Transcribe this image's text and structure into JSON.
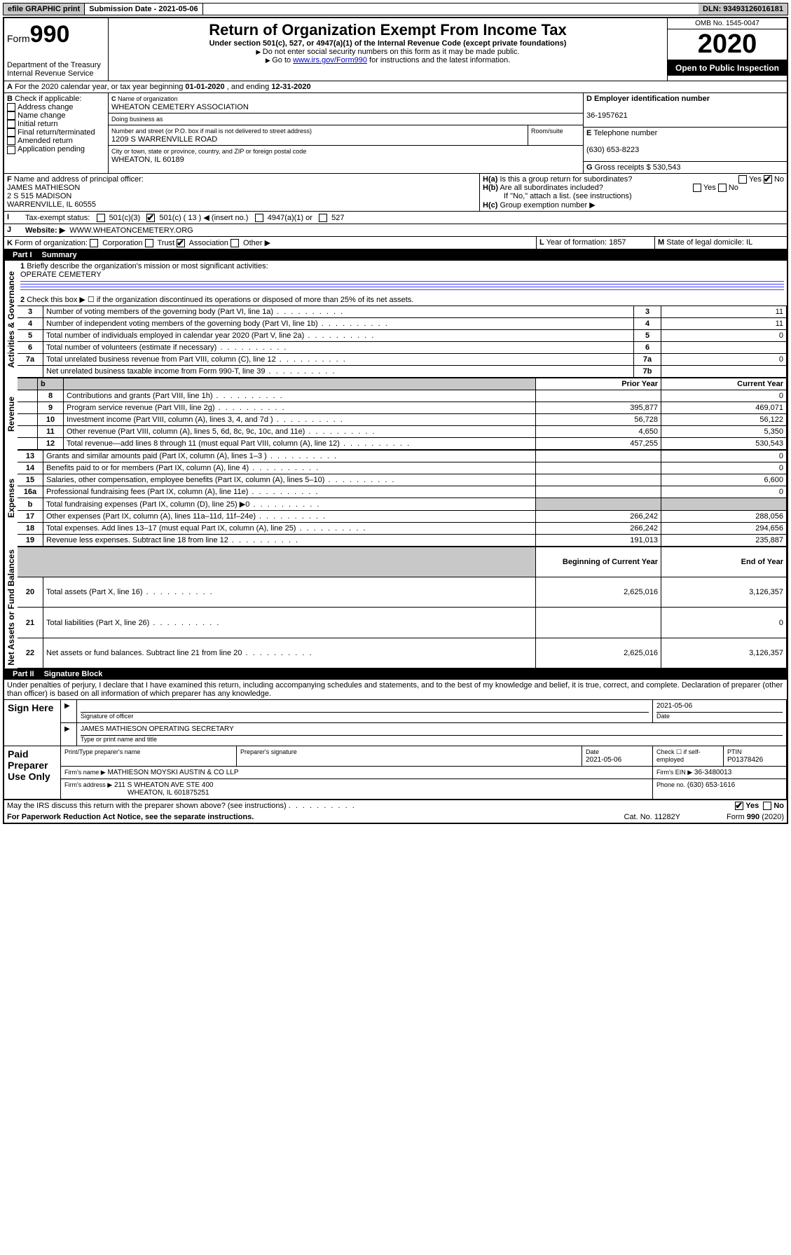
{
  "topbar": {
    "efile": "efile GRAPHIC print",
    "submission_label": "Submission Date - ",
    "submission_date": "2021-05-06",
    "dln_label": "DLN: ",
    "dln": "93493126016181"
  },
  "header": {
    "form_prefix": "Form",
    "form_number": "990",
    "dept": "Department of the Treasury",
    "irs": "Internal Revenue Service",
    "title": "Return of Organization Exempt From Income Tax",
    "subtitle": "Under section 501(c), 527, or 4947(a)(1) of the Internal Revenue Code (except private foundations)",
    "note1": "Do not enter social security numbers on this form as it may be made public.",
    "note2_pre": "Go to ",
    "note2_link": "www.irs.gov/Form990",
    "note2_post": " for instructions and the latest information.",
    "omb": "OMB No. 1545-0047",
    "year": "2020",
    "open": "Open to Public Inspection"
  },
  "line_a": {
    "text_pre": "For the 2020 calendar year, or tax year beginning ",
    "begin": "01-01-2020",
    "text_mid": " , and ending ",
    "end": "12-31-2020"
  },
  "section_b": {
    "label": "Check if applicable:",
    "items": [
      "Address change",
      "Name change",
      "Initial return",
      "Final return/terminated",
      "Amended return",
      "Application pending"
    ]
  },
  "section_c": {
    "name_label": "Name of organization",
    "org_name": "WHEATON CEMETERY ASSOCIATION",
    "dba_label": "Doing business as",
    "addr_label": "Number and street (or P.O. box if mail is not delivered to street address)",
    "room_label": "Room/suite",
    "street": "1209 S WARRENVILLE ROAD",
    "city_label": "City or town, state or province, country, and ZIP or foreign postal code",
    "city": "WHEATON, IL  60189"
  },
  "section_d": {
    "label": "Employer identification number",
    "value": "36-1957621"
  },
  "section_e": {
    "label": "Telephone number",
    "value": "(630) 653-8223"
  },
  "section_g": {
    "label": "Gross receipts $",
    "value": "530,543"
  },
  "section_f": {
    "label": "Name and address of principal officer:",
    "name": "JAMES MATHIESON",
    "addr1": "2 S 515 MADISON",
    "addr2": "WARRENVILLE, IL  60555"
  },
  "section_h": {
    "a": "Is this a group return for subordinates?",
    "b": "Are all subordinates included?",
    "b_note": "If \"No,\" attach a list. (see instructions)",
    "c": "Group exemption number ▶",
    "yes": "Yes",
    "no": "No"
  },
  "tax_exempt": {
    "label": "Tax-exempt status:",
    "c3": "501(c)(3)",
    "c": "501(c) ( 13 ) ◀ (insert no.)",
    "a1": "4947(a)(1) or",
    "s527": "527"
  },
  "website": {
    "label": "Website: ▶",
    "value": "WWW.WHEATONCEMETERY.ORG"
  },
  "section_k": {
    "label": "Form of organization:",
    "corp": "Corporation",
    "trust": "Trust",
    "assoc": "Association",
    "other": "Other ▶"
  },
  "section_l": {
    "label": "Year of formation:",
    "value": "1857"
  },
  "section_m": {
    "label": "State of legal domicile:",
    "value": "IL"
  },
  "part1": {
    "title": "Part I",
    "heading": "Summary",
    "l1_label": "Briefly describe the organization's mission or most significant activities:",
    "l1_value": "OPERATE CEMETERY",
    "l2": "Check this box ▶ ☐ if the organization discontinued its operations or disposed of more than 25% of its net assets.",
    "rows_gov": [
      {
        "n": "3",
        "t": "Number of voting members of the governing body (Part VI, line 1a)",
        "box": "3",
        "v": "11"
      },
      {
        "n": "4",
        "t": "Number of independent voting members of the governing body (Part VI, line 1b)",
        "box": "4",
        "v": "11"
      },
      {
        "n": "5",
        "t": "Total number of individuals employed in calendar year 2020 (Part V, line 2a)",
        "box": "5",
        "v": "0"
      },
      {
        "n": "6",
        "t": "Total number of volunteers (estimate if necessary)",
        "box": "6",
        "v": ""
      },
      {
        "n": "7a",
        "t": "Total unrelated business revenue from Part VIII, column (C), line 12",
        "box": "7a",
        "v": "0"
      },
      {
        "n": "",
        "t": "Net unrelated business taxable income from Form 990-T, line 39",
        "box": "7b",
        "v": ""
      }
    ],
    "col_prior": "Prior Year",
    "col_curr": "Current Year",
    "rev": [
      {
        "n": "8",
        "t": "Contributions and grants (Part VIII, line 1h)",
        "p": "",
        "c": "0"
      },
      {
        "n": "9",
        "t": "Program service revenue (Part VIII, line 2g)",
        "p": "395,877",
        "c": "469,071"
      },
      {
        "n": "10",
        "t": "Investment income (Part VIII, column (A), lines 3, 4, and 7d )",
        "p": "56,728",
        "c": "56,122"
      },
      {
        "n": "11",
        "t": "Other revenue (Part VIII, column (A), lines 5, 6d, 8c, 9c, 10c, and 11e)",
        "p": "4,650",
        "c": "5,350"
      },
      {
        "n": "12",
        "t": "Total revenue—add lines 8 through 11 (must equal Part VIII, column (A), line 12)",
        "p": "457,255",
        "c": "530,543"
      }
    ],
    "exp": [
      {
        "n": "13",
        "t": "Grants and similar amounts paid (Part IX, column (A), lines 1–3 )",
        "p": "",
        "c": "0"
      },
      {
        "n": "14",
        "t": "Benefits paid to or for members (Part IX, column (A), line 4)",
        "p": "",
        "c": "0"
      },
      {
        "n": "15",
        "t": "Salaries, other compensation, employee benefits (Part IX, column (A), lines 5–10)",
        "p": "",
        "c": "6,600"
      },
      {
        "n": "16a",
        "t": "Professional fundraising fees (Part IX, column (A), line 11e)",
        "p": "",
        "c": "0"
      },
      {
        "n": "b",
        "t": "Total fundraising expenses (Part IX, column (D), line 25) ▶0",
        "p": "shade",
        "c": "shade"
      },
      {
        "n": "17",
        "t": "Other expenses (Part IX, column (A), lines 11a–11d, 11f–24e)",
        "p": "266,242",
        "c": "288,056"
      },
      {
        "n": "18",
        "t": "Total expenses. Add lines 13–17 (must equal Part IX, column (A), line 25)",
        "p": "266,242",
        "c": "294,656"
      },
      {
        "n": "19",
        "t": "Revenue less expenses. Subtract line 18 from line 12",
        "p": "191,013",
        "c": "235,887"
      }
    ],
    "col_begin": "Beginning of Current Year",
    "col_end": "End of Year",
    "net": [
      {
        "n": "20",
        "t": "Total assets (Part X, line 16)",
        "p": "2,625,016",
        "c": "3,126,357"
      },
      {
        "n": "21",
        "t": "Total liabilities (Part X, line 26)",
        "p": "",
        "c": "0"
      },
      {
        "n": "22",
        "t": "Net assets or fund balances. Subtract line 21 from line 20",
        "p": "2,625,016",
        "c": "3,126,357"
      }
    ],
    "side_gov": "Activities & Governance",
    "side_rev": "Revenue",
    "side_exp": "Expenses",
    "side_net": "Net Assets or Fund Balances"
  },
  "part2": {
    "title": "Part II",
    "heading": "Signature Block",
    "perjury": "Under penalties of perjury, I declare that I have examined this return, including accompanying schedules and statements, and to the best of my knowledge and belief, it is true, correct, and complete. Declaration of preparer (other than officer) is based on all information of which preparer has any knowledge.",
    "sign_here": "Sign Here",
    "sig_officer": "Signature of officer",
    "sig_date": "2021-05-06",
    "date_label": "Date",
    "officer_name": "JAMES MATHIESON  OPERATING SECRETARY",
    "type_name": "Type or print name and title",
    "paid": "Paid Preparer Use Only",
    "prep_name_label": "Print/Type preparer's name",
    "prep_sig_label": "Preparer's signature",
    "prep_date_label": "Date",
    "prep_date": "2021-05-06",
    "self_emp": "Check ☐ if self-employed",
    "ptin_label": "PTIN",
    "ptin": "P01378426",
    "firm_name_label": "Firm's name    ▶",
    "firm_name": "MATHIESON MOYSKI AUSTIN & CO LLP",
    "firm_ein_label": "Firm's EIN ▶",
    "firm_ein": "36-3480013",
    "firm_addr_label": "Firm's address ▶",
    "firm_addr": "211 S WHEATON AVE STE 400",
    "firm_city": "WHEATON, IL  601875251",
    "firm_phone_label": "Phone no.",
    "firm_phone": "(630) 653-1616",
    "discuss": "May the IRS discuss this return with the preparer shown above? (see instructions)",
    "yes": "Yes",
    "no": "No"
  },
  "footer": {
    "pra": "For Paperwork Reduction Act Notice, see the separate instructions.",
    "cat": "Cat. No. 11282Y",
    "form": "Form 990 (2020)"
  }
}
